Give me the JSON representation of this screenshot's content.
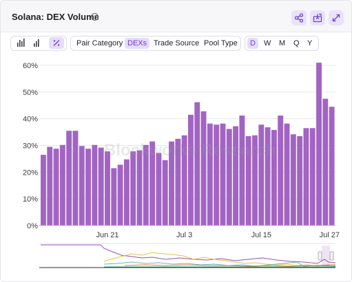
{
  "header": {
    "title": "Solana: DEX Volume"
  },
  "toolbar": {
    "group_by": [
      {
        "label": "Pair Category",
        "active": false
      },
      {
        "label": "DEXs",
        "active": true
      },
      {
        "label": "Trade Source",
        "active": false
      },
      {
        "label": "Pool Type",
        "active": false
      }
    ],
    "intervals": [
      {
        "label": "D",
        "active": true
      },
      {
        "label": "W",
        "active": false
      },
      {
        "label": "M",
        "active": false
      },
      {
        "label": "Q",
        "active": false
      },
      {
        "label": "Y",
        "active": false
      }
    ]
  },
  "watermark": "Blockworks Research",
  "colors": {
    "bar": "#a264c2",
    "grid": "#e8e8ee",
    "accent": "#6c3fc7",
    "button_bg": "#e9e2fb"
  },
  "chart_data": {
    "type": "bar",
    "title": "Solana: DEX Volume",
    "ylim": [
      0,
      60
    ],
    "y_unit": "%",
    "yticks": [
      "0%",
      "10%",
      "20%",
      "30%",
      "40%",
      "50%",
      "60%"
    ],
    "xticks": [
      "Jun 21",
      "Jul 3",
      "Jul 15",
      "Jul 27"
    ],
    "values": [
      26.5,
      29.5,
      28.8,
      30.2,
      35.5,
      35.5,
      29.8,
      28.8,
      30.2,
      29.2,
      27.8,
      21.5,
      22.8,
      24.8,
      27.8,
      28.2,
      30.2,
      31.5,
      27.2,
      24.5,
      31.5,
      32.5,
      33.8,
      41.5,
      46.2,
      42.8,
      38.2,
      37.8,
      38.2,
      36.2,
      37.2,
      41.2,
      33.5,
      33.8,
      37.8,
      36.8,
      35.8,
      41.2,
      38.2,
      34.2,
      33.5,
      36.5,
      36.5,
      61.0,
      47.5,
      44.5
    ],
    "grid": true,
    "legend": "none"
  }
}
